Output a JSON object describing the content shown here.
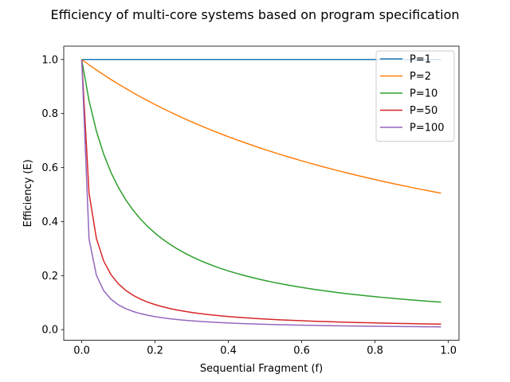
{
  "chart_data": {
    "type": "line",
    "title": "Efficiency of multi-core systems based on program specification",
    "xlabel": "Sequential Fragment (f)",
    "ylabel": "Efficiency (E)",
    "xlim": [
      -0.049,
      1.029
    ],
    "ylim": [
      -0.0395,
      1.0495
    ],
    "xticks": [
      0.0,
      0.2,
      0.4,
      0.6,
      0.8,
      1.0
    ],
    "xtick_labels": [
      "0.0",
      "0.2",
      "0.4",
      "0.6",
      "0.8",
      "1.0"
    ],
    "yticks": [
      0.0,
      0.2,
      0.4,
      0.6,
      0.8,
      1.0
    ],
    "ytick_labels": [
      "0.0",
      "0.2",
      "0.4",
      "0.6",
      "0.8",
      "1.0"
    ],
    "grid": false,
    "legend_position": "top-right",
    "f_start": 0.0,
    "f_end": 0.98,
    "f_step": 0.02,
    "formula": "E = 1 / (f*(P-1) + 1)",
    "series": [
      {
        "name": "P=1",
        "P": 1,
        "color": "#1f77b4"
      },
      {
        "name": "P=2",
        "P": 2,
        "color": "#ff7f0e"
      },
      {
        "name": "P=10",
        "P": 10,
        "color": "#2ca02c"
      },
      {
        "name": "P=50",
        "P": 50,
        "color": "#d62728"
      },
      {
        "name": "P=100",
        "P": 100,
        "color": "#9467bd"
      }
    ]
  }
}
